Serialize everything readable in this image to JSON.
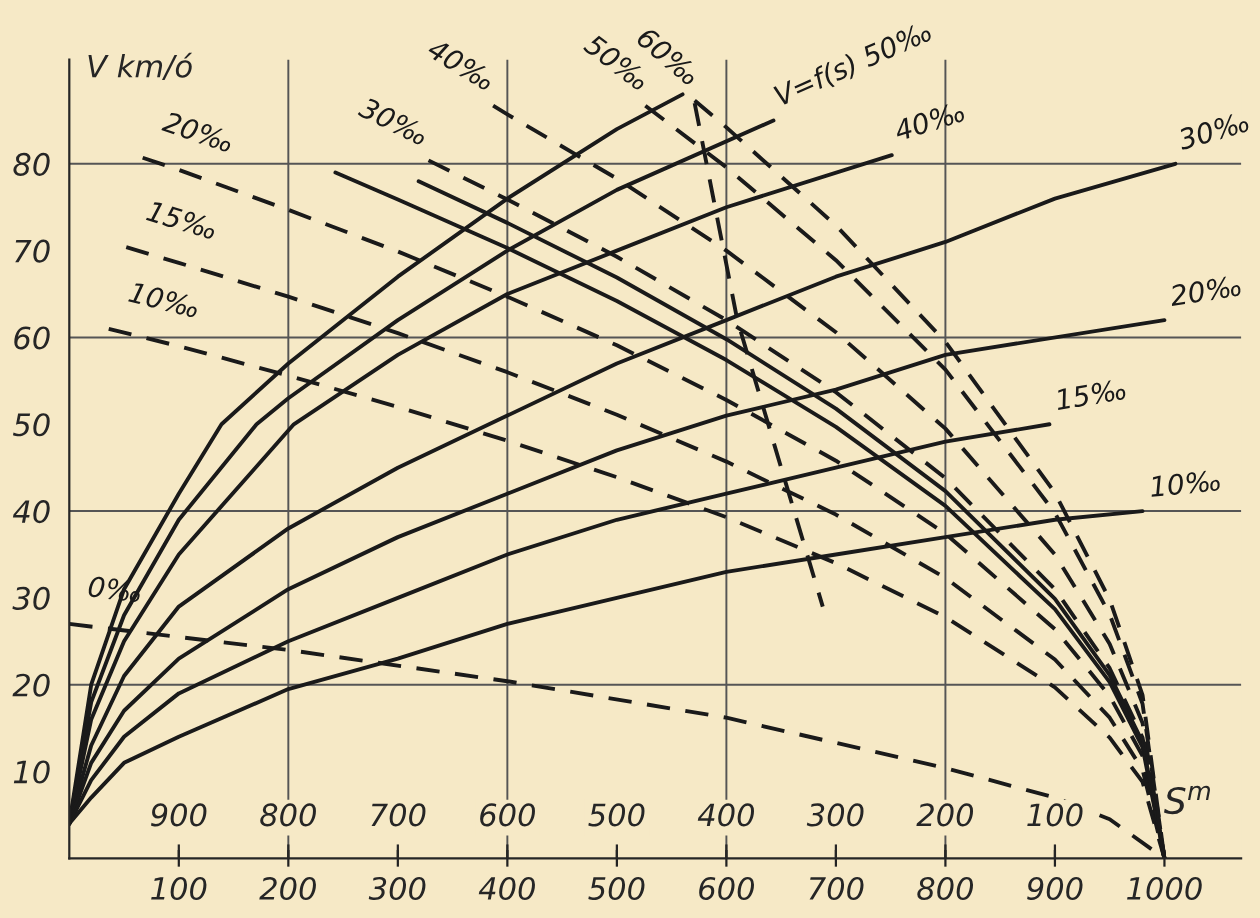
{
  "chart_data": {
    "type": "line",
    "xlabel": "S$^{m}$",
    "ylabel": "V km/ó",
    "xlim": [
      0,
      1070
    ],
    "ylim": [
      0,
      92
    ],
    "xticks": [
      100,
      200,
      300,
      400,
      500,
      600,
      700,
      800,
      900,
      1000
    ],
    "yticks": [
      10,
      20,
      30,
      40,
      50,
      60,
      70,
      80
    ],
    "x2lim": [
      1000,
      -70
    ],
    "x2ticks": [
      900,
      800,
      700,
      600,
      500,
      400,
      300,
      200,
      100
    ],
    "grid": false,
    "ref_lines": [
      {
        "axis": "x",
        "value": 200,
        "color": "#555555"
      },
      {
        "axis": "x",
        "value": 400,
        "color": "#555555"
      },
      {
        "axis": "x",
        "value": 600,
        "color": "#555555"
      },
      {
        "axis": "x",
        "value": 800,
        "color": "#555555"
      },
      {
        "axis": "y",
        "value": 20,
        "color": "#555555"
      },
      {
        "axis": "y",
        "value": 40,
        "color": "#555555"
      },
      {
        "axis": "y",
        "value": 60,
        "color": "#555555"
      },
      {
        "axis": "y",
        "value": 80,
        "color": "#555555"
      }
    ],
    "series": [
      {
        "line_style": "solid",
        "color": "#1a1a1a",
        "x": [
          0,
          20,
          50,
          100,
          139,
          200,
          300,
          400,
          500,
          560
        ],
        "values": [
          4,
          20,
          31,
          42,
          50,
          57,
          67,
          76,
          84,
          88
        ]
      },
      {
        "name": "V=f(s) 50‰",
        "line_style": "solid",
        "color": "#1a1a1a",
        "x": [
          0,
          20,
          50,
          100,
          171,
          200,
          300,
          400,
          500,
          643
        ],
        "values": [
          4,
          18,
          28,
          39,
          50,
          53,
          62,
          70,
          77,
          85
        ]
      },
      {
        "name": "40‰",
        "line_style": "solid",
        "color": "#1a1a1a",
        "x": [
          0,
          20,
          50,
          100,
          205,
          300,
          400,
          500,
          600,
          751
        ],
        "values": [
          4,
          16,
          25,
          35,
          50,
          58,
          65,
          70,
          75,
          81
        ]
      },
      {
        "name": "30‰",
        "line_style": "solid",
        "color": "#1a1a1a",
        "x": [
          0,
          20,
          50,
          100,
          200,
          300,
          400,
          500,
          600,
          700,
          800,
          900,
          1010
        ],
        "values": [
          4,
          13,
          21,
          29,
          38,
          45,
          51,
          57,
          62,
          67,
          71,
          76,
          80
        ]
      },
      {
        "name": "20‰",
        "line_style": "solid",
        "color": "#1a1a1a",
        "x": [
          0,
          20,
          50,
          100,
          200,
          300,
          400,
          500,
          600,
          700,
          800,
          1000
        ],
        "values": [
          4,
          11,
          17,
          23,
          31,
          37,
          42,
          47,
          51,
          54,
          58,
          62
        ]
      },
      {
        "name": "15‰",
        "line_style": "solid",
        "color": "#1a1a1a",
        "x": [
          0,
          20,
          50,
          100,
          200,
          300,
          400,
          500,
          600,
          700,
          800,
          895
        ],
        "values": [
          4,
          9,
          14,
          19,
          25,
          30,
          35,
          39,
          42,
          45,
          48,
          50
        ]
      },
      {
        "name": "10‰",
        "line_style": "solid",
        "color": "#1a1a1a",
        "x": [
          0,
          20,
          50,
          100,
          200,
          300,
          400,
          500,
          600,
          700,
          800,
          900,
          980
        ],
        "values": [
          4,
          7,
          11,
          14,
          19.5,
          23,
          27,
          30,
          33,
          35,
          37,
          39,
          40
        ]
      },
      {
        "name": "0‰",
        "line_style": "dashed",
        "color": "#1a1a1a",
        "x": [
          0,
          200,
          400,
          600,
          800,
          900,
          950,
          1000
        ],
        "values": [
          27,
          24,
          20.4,
          16.2,
          10.4,
          7,
          4.5,
          0
        ]
      },
      {
        "name": "10‰",
        "line_style": "dashed",
        "color": "#1a1a1a",
        "x": [
          36,
          100,
          200,
          300,
          400,
          500,
          600,
          700,
          800,
          900,
          950,
          980,
          1000
        ],
        "values": [
          61,
          59,
          55.6,
          52,
          48.1,
          43.9,
          39.3,
          34,
          27.8,
          19.7,
          13.9,
          8.8,
          0
        ]
      },
      {
        "name": "15‰",
        "line_style": "dashed",
        "color": "#1a1a1a",
        "x": [
          52,
          100,
          200,
          300,
          400,
          500,
          600,
          700,
          800,
          900,
          950,
          980,
          1000
        ],
        "values": [
          70.4,
          68.6,
          64.7,
          60.5,
          56,
          51.1,
          45.7,
          39.6,
          32.3,
          22.9,
          16.2,
          10.2,
          0
        ]
      },
      {
        "name": "20‰",
        "line_style": "dashed",
        "color": "#1a1a1a",
        "x": [
          67,
          100,
          200,
          300,
          400,
          500,
          600,
          700,
          800,
          900,
          950,
          980,
          1000
        ],
        "values": [
          80.7,
          79.3,
          74.7,
          69.9,
          64.7,
          59.1,
          52.8,
          45.8,
          37.4,
          26.4,
          18.7,
          11.8,
          0
        ]
      },
      {
        "line_style": "solid",
        "color": "#1a1a1a",
        "x": [
          243,
          300,
          400,
          500,
          600,
          700,
          800,
          900,
          950,
          980,
          1000
        ],
        "values": [
          79,
          75.9,
          70.3,
          64.2,
          57.4,
          49.7,
          40.6,
          28.7,
          20.3,
          12.8,
          0
        ]
      },
      {
        "line_style": "solid",
        "color": "#1a1a1a",
        "x": [
          319,
          400,
          500,
          600,
          700,
          800,
          900,
          950,
          980,
          1000
        ],
        "values": [
          78,
          73.2,
          66.9,
          59.8,
          51.8,
          42.3,
          29.9,
          21.1,
          13.4,
          0
        ]
      },
      {
        "name": "30‰",
        "line_style": "dashed",
        "color": "#1a1a1a",
        "x": [
          328,
          400,
          500,
          600,
          700,
          800,
          900,
          950,
          980,
          1000
        ],
        "values": [
          80.4,
          75.9,
          69.3,
          62,
          53.7,
          43.8,
          31,
          21.9,
          13.9,
          0
        ]
      },
      {
        "name": "40‰",
        "line_style": "dashed",
        "color": "#1a1a1a",
        "x": [
          387,
          400,
          500,
          600,
          700,
          800,
          900,
          950,
          980,
          1000
        ],
        "values": [
          86.7,
          85.7,
          78.3,
          70,
          60.6,
          49.5,
          35,
          24.7,
          15.6,
          0
        ]
      },
      {
        "name": "50‰",
        "line_style": "dashed",
        "color": "#1a1a1a",
        "x": [
          526,
          600,
          700,
          800,
          900,
          950,
          980,
          1000
        ],
        "values": [
          86.7,
          79.6,
          68.9,
          56.3,
          39.8,
          28.1,
          17.8,
          0
        ]
      },
      {
        "name": "60‰",
        "line_style": "dashed",
        "color": "#1a1a1a",
        "x": [
          571,
          600,
          700,
          800,
          900,
          950,
          980,
          1000
        ],
        "values": [
          87.3,
          84.2,
          72.9,
          59.5,
          42.1,
          29.8,
          18.8,
          0
        ]
      },
      {
        "line_style": "dashed",
        "color": "#1a1a1a",
        "x": [
          571,
          610,
          650,
          688
        ],
        "values": [
          87,
          62,
          45,
          29
        ]
      }
    ]
  }
}
